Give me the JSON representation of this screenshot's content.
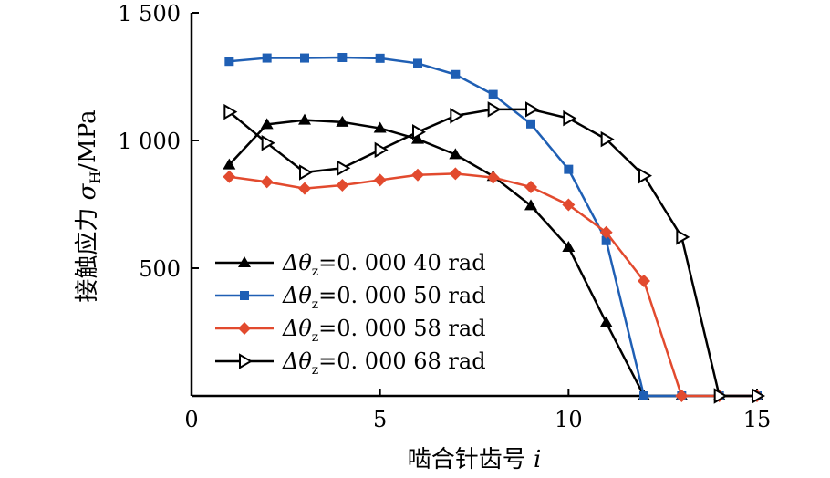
{
  "chart_data": {
    "type": "line",
    "xlabel": "啮合针齿号",
    "xlabel_var": "i",
    "ylabel_prefix": "接触应力",
    "ylabel_symbol": "σ",
    "ylabel_sub": "H",
    "ylabel_unit": "/MPa",
    "xlim": [
      0,
      15
    ],
    "ylim": [
      0,
      1500
    ],
    "xticks": [
      0,
      5,
      10,
      15
    ],
    "xtick_labels": [
      "0",
      "5",
      "10",
      "15"
    ],
    "yticks": [
      500,
      1000,
      1500
    ],
    "ytick_labels": [
      "500",
      "1 000",
      "1 500"
    ],
    "grid": false,
    "legend_position": "lower-left",
    "series": [
      {
        "name": "Δθ_z = 0.000 40 rad",
        "legend_prefix": "Δθ",
        "legend_sub": "z",
        "legend_value": "=0. 000 40 rad",
        "color": "#000000",
        "marker": "triangle-up",
        "x": [
          1,
          2,
          3,
          4,
          5,
          6,
          7,
          8,
          9,
          10,
          11,
          12,
          13,
          14,
          15
        ],
        "y": [
          905,
          1063,
          1080,
          1072,
          1048,
          1005,
          945,
          860,
          745,
          582,
          287,
          0,
          0,
          0,
          0
        ]
      },
      {
        "name": "Δθ_z = 0.000 50 rad",
        "legend_prefix": "Δθ",
        "legend_sub": "z",
        "legend_value": "=0. 000 50 rad",
        "color": "#1f5fb4",
        "marker": "square",
        "x": [
          1,
          2,
          3,
          4,
          5,
          6,
          7,
          8,
          9,
          10,
          11,
          12,
          13,
          14,
          15
        ],
        "y": [
          1310,
          1323,
          1323,
          1325,
          1322,
          1302,
          1258,
          1180,
          1065,
          887,
          608,
          0,
          0,
          0,
          0
        ]
      },
      {
        "name": "Δθ_z = 0.000 58 rad",
        "legend_prefix": "Δθ",
        "legend_sub": "z",
        "legend_value": "=0. 000 58 rad",
        "color": "#e24a2e",
        "marker": "diamond",
        "x": [
          1,
          2,
          3,
          4,
          5,
          6,
          7,
          8,
          9,
          10,
          11,
          12,
          13,
          14,
          15
        ],
        "y": [
          858,
          838,
          812,
          825,
          845,
          865,
          870,
          855,
          818,
          748,
          640,
          450,
          0,
          0,
          0
        ]
      },
      {
        "name": "Δθ_z = 0.000 68 rad",
        "legend_prefix": "Δθ",
        "legend_sub": "z",
        "legend_value": "=0. 000 68 rad",
        "color": "#000000",
        "marker": "triangle-right",
        "x": [
          1,
          2,
          3,
          4,
          5,
          6,
          7,
          8,
          9,
          10,
          11,
          12,
          13,
          14,
          15
        ],
        "y": [
          1112,
          990,
          875,
          892,
          963,
          1033,
          1097,
          1122,
          1122,
          1087,
          1005,
          862,
          622,
          0,
          0
        ]
      }
    ]
  }
}
